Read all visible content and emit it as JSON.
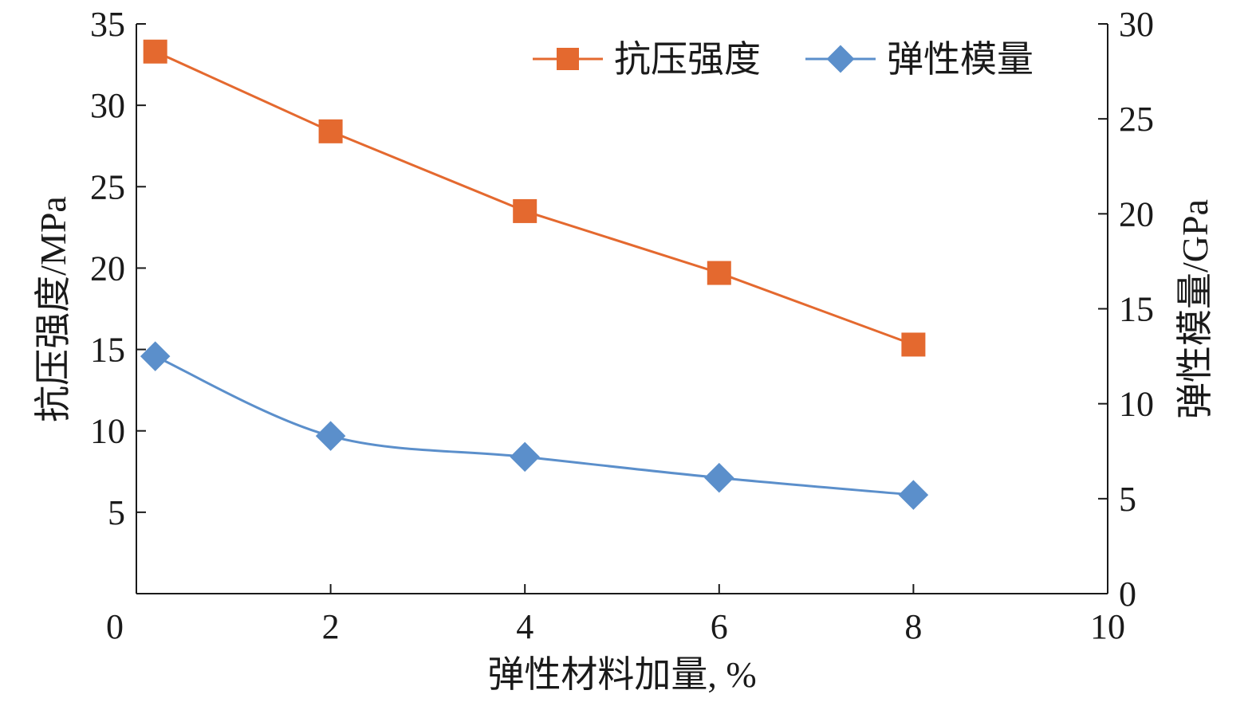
{
  "chart_data": {
    "type": "line",
    "title": "",
    "xlabel": "弹性材料加量, %",
    "ylabel": "抗压强度/MPa",
    "y2label": "弹性模量/GPa",
    "xlim": [
      0,
      10
    ],
    "ylim": [
      0,
      35
    ],
    "y2lim": [
      0,
      30
    ],
    "x_ticks": [
      0,
      2,
      4,
      6,
      8,
      10
    ],
    "y_ticks": [
      5,
      10,
      15,
      20,
      25,
      30,
      35
    ],
    "y2_ticks": [
      0,
      5,
      10,
      15,
      20,
      25,
      30
    ],
    "grid": false,
    "legend_position": "top-right",
    "series": [
      {
        "name": "抗压强度",
        "axis": "left",
        "color": "#E4692F",
        "marker": "square",
        "smooth": false,
        "x": [
          0,
          2,
          4,
          6,
          8
        ],
        "y": [
          33.3,
          28.4,
          23.5,
          19.7,
          15.3
        ]
      },
      {
        "name": "弹性模量",
        "axis": "right",
        "color": "#5B8FCB",
        "marker": "diamond",
        "smooth": true,
        "x": [
          0,
          2,
          4,
          6,
          8
        ],
        "y": [
          12.5,
          8.3,
          7.2,
          6.1,
          5.2
        ]
      }
    ]
  }
}
